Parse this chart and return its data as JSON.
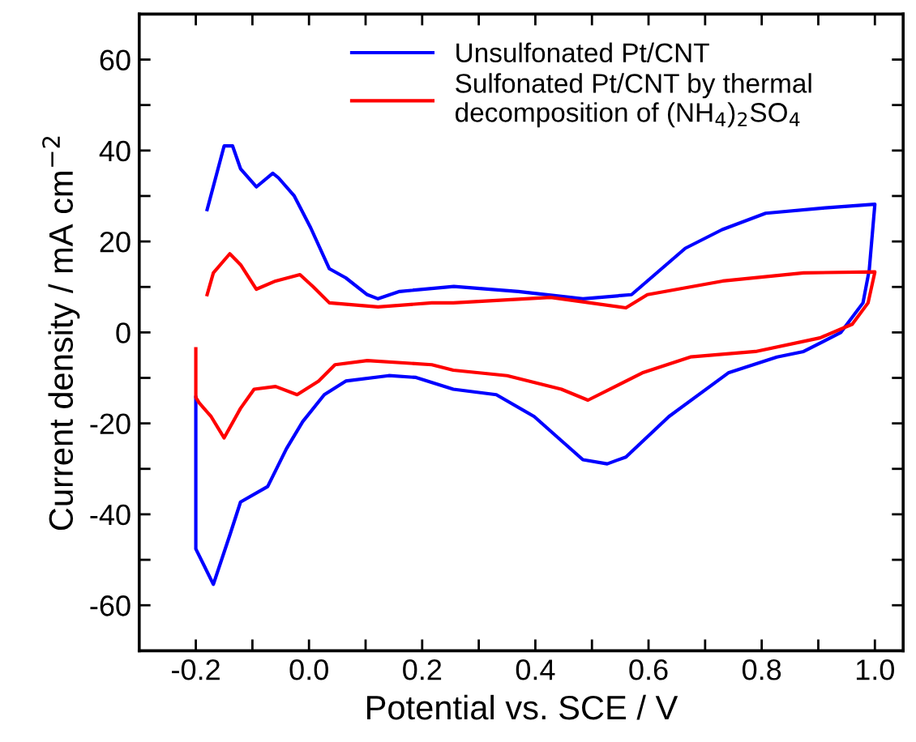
{
  "chart_data": {
    "type": "line",
    "xlabel": "Potential vs. SCE / V",
    "ylabel": "Current density / mA cm$^{−2}$",
    "xlim": [
      -0.3,
      1.05
    ],
    "ylim": [
      -70,
      70
    ],
    "xticks": [
      {
        "value": -0.2,
        "label": "-0.2"
      },
      {
        "value": -0.1,
        "label": null
      },
      {
        "value": 0.0,
        "label": "0.0"
      },
      {
        "value": 0.1,
        "label": null
      },
      {
        "value": 0.2,
        "label": "0.2"
      },
      {
        "value": 0.3,
        "label": null
      },
      {
        "value": 0.4,
        "label": "0.4"
      },
      {
        "value": 0.5,
        "label": null
      },
      {
        "value": 0.6,
        "label": "0.6"
      },
      {
        "value": 0.7,
        "label": null
      },
      {
        "value": 0.8,
        "label": "0.8"
      },
      {
        "value": 0.9,
        "label": null
      },
      {
        "value": 1.0,
        "label": "1.0"
      }
    ],
    "yticks": [
      {
        "value": -60,
        "label": "-60"
      },
      {
        "value": -50,
        "label": null
      },
      {
        "value": -40,
        "label": "-40"
      },
      {
        "value": -30,
        "label": null
      },
      {
        "value": -20,
        "label": "-20"
      },
      {
        "value": -10,
        "label": null
      },
      0,
      {
        "value": 10,
        "label": null
      },
      20,
      {
        "value": 30,
        "label": null
      },
      40,
      {
        "value": 50,
        "label": null
      },
      60
    ],
    "legend": "top",
    "grid": false,
    "marker": "none",
    "line_style": "solid",
    "series": [
      {
        "name": "Unsulfonated Pt/CNT",
        "color": "#0000ff",
        "x": [
          -0.18,
          -0.15,
          -0.135,
          -0.121,
          -0.093,
          -0.064,
          -0.054,
          -0.026,
          0.003,
          0.036,
          0.065,
          0.103,
          0.122,
          0.16,
          0.256,
          0.37,
          0.484,
          0.57,
          0.665,
          0.73,
          0.807,
          0.912,
          1.0,
          0.99,
          0.979,
          0.94,
          0.874,
          0.827,
          0.741,
          0.636,
          0.56,
          0.527,
          0.484,
          0.446,
          0.398,
          0.331,
          0.255,
          0.189,
          0.141,
          0.065,
          0.027,
          -0.011,
          -0.04,
          -0.073,
          -0.121,
          -0.14,
          -0.169,
          -0.2,
          -0.2
        ],
        "values": [
          27,
          41,
          41,
          36,
          32,
          35,
          34,
          30,
          23,
          14,
          12,
          8.3,
          7.4,
          9,
          10.1,
          9,
          7.4,
          8.3,
          18.5,
          22.6,
          26.2,
          27.4,
          28.2,
          13.7,
          6.5,
          0,
          -4.2,
          -5.4,
          -8.9,
          -18.5,
          -27.4,
          -28.9,
          -28,
          -23.8,
          -18.5,
          -13.7,
          -12.5,
          -9.9,
          -9.5,
          -10.7,
          -13.7,
          -19.6,
          -25.6,
          -33.9,
          -37.3,
          -44.6,
          -55.4,
          -47.6,
          -14.3
        ]
      },
      {
        "name": "Sulfonated Pt/CNT by thermal\ndecomposition of (NH$_{4}$)$_{2}$SO$_{4}$",
        "color": "#ff0000",
        "x": [
          -0.18,
          -0.169,
          -0.14,
          -0.121,
          -0.093,
          -0.059,
          -0.016,
          0.007,
          0.036,
          0.122,
          0.217,
          0.255,
          0.427,
          0.56,
          0.598,
          0.731,
          0.874,
          1.0,
          0.988,
          0.96,
          0.903,
          0.789,
          0.674,
          0.589,
          0.493,
          0.446,
          0.35,
          0.255,
          0.217,
          0.103,
          0.046,
          0.017,
          -0.021,
          -0.059,
          -0.097,
          -0.121,
          -0.15,
          -0.173,
          -0.194,
          -0.2,
          -0.2
        ],
        "values": [
          8.3,
          13.1,
          17.3,
          14.9,
          9.5,
          11.3,
          12.7,
          10.1,
          6.5,
          5.6,
          6.5,
          6.5,
          7.7,
          5.4,
          8.3,
          11.3,
          13.1,
          13.3,
          6.5,
          1.8,
          -1.2,
          -4.2,
          -5.4,
          -8.9,
          -14.9,
          -12.5,
          -9.5,
          -8.3,
          -7.1,
          -6.2,
          -7.1,
          -10.7,
          -13.7,
          -11.9,
          -12.5,
          -16.7,
          -23.2,
          -18.5,
          -15.5,
          -14.3,
          -3.6
        ]
      }
    ]
  }
}
